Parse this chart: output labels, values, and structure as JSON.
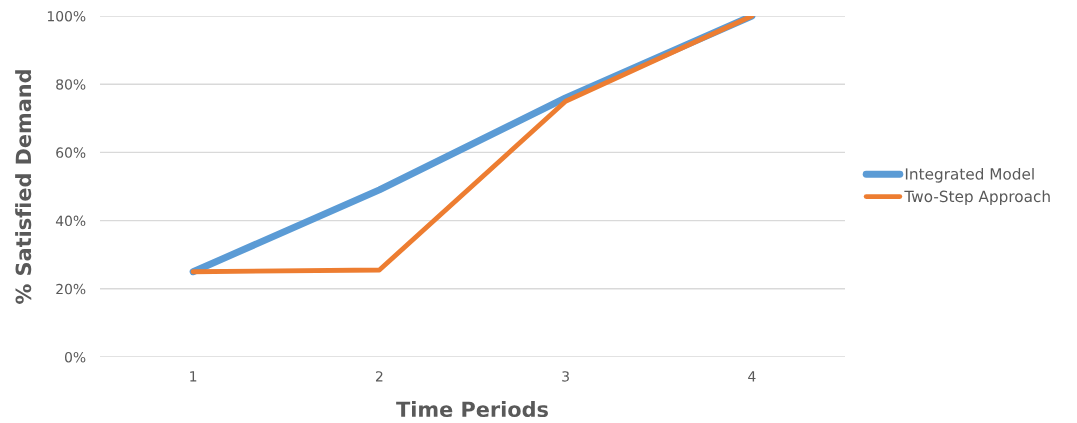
{
  "chart_data": {
    "type": "line",
    "xlabel": "Time Periods",
    "ylabel": "% Satisfied Demand",
    "categories": [
      "1",
      "2",
      "3",
      "4"
    ],
    "series": [
      {
        "name": "Integrated Model",
        "color": "#5b9bd5",
        "values": [
          25,
          49,
          76,
          100
        ]
      },
      {
        "name": "Two-Step Approach",
        "color": "#ed7d31",
        "values": [
          25,
          25.5,
          75,
          100
        ]
      }
    ],
    "ylim": [
      0,
      100
    ],
    "yticks": [
      {
        "value": 0,
        "label": "0%"
      },
      {
        "value": 20,
        "label": "20%"
      },
      {
        "value": 40,
        "label": "40%"
      },
      {
        "value": 60,
        "label": "60%"
      },
      {
        "value": 80,
        "label": "80%"
      },
      {
        "value": 100,
        "label": "100%"
      }
    ],
    "grid": "y",
    "legend": "right",
    "marker": "none",
    "line_style": "solid"
  }
}
